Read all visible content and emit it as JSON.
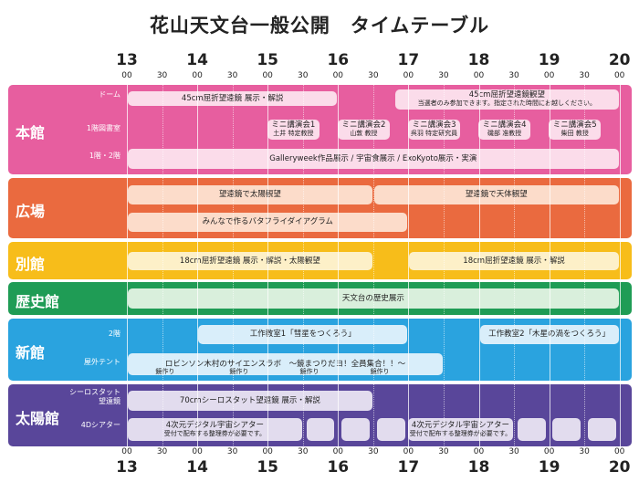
{
  "title": "花山天文台一般公開　タイムテーブル",
  "axis": {
    "hours": [
      "13",
      "14",
      "15",
      "16",
      "17",
      "18",
      "19",
      "20"
    ],
    "minutes": [
      "00",
      "30",
      "00",
      "30",
      "00",
      "30",
      "00",
      "30",
      "00",
      "30",
      "00",
      "30",
      "00",
      "30",
      "00"
    ]
  },
  "sections": [
    {
      "id": "honkan",
      "label": "本館",
      "color": "#e75e9f",
      "sublabels": [
        "ドーム",
        "1階図書室",
        "1階・2階"
      ]
    },
    {
      "id": "hiroba",
      "label": "広場",
      "color": "#ea6a3f",
      "sublabels": []
    },
    {
      "id": "bekkan",
      "label": "別館",
      "color": "#f7bd1a",
      "sublabels": []
    },
    {
      "id": "rekishi",
      "label": "歴史館",
      "color": "#1f9c55",
      "sublabels": []
    },
    {
      "id": "shinkan",
      "label": "新館",
      "color": "#2aa3df",
      "sublabels": [
        "2階",
        "屋外テント"
      ]
    },
    {
      "id": "taiyo",
      "label": "太陽館",
      "color": "#59469a",
      "sublabels": [
        "シーロスタット望遠鏡",
        "4Dシアター"
      ]
    }
  ],
  "events": {
    "dome1": {
      "lines": [
        "45cm屈折望遠鏡 展示・解説"
      ]
    },
    "dome2": {
      "lines": [
        "45cm屈折望遠鏡観望",
        "当選者のみ参加できます。指定された時間にお越しください。"
      ]
    },
    "lecture1": {
      "lines": [
        "ミニ講演会1",
        "土井 特定教授"
      ]
    },
    "lecture2": {
      "lines": [
        "ミニ講演会2",
        "山敦 教授"
      ]
    },
    "lecture3": {
      "lines": [
        "ミニ講演会3",
        "呉羽 特定研究員"
      ]
    },
    "lecture4": {
      "lines": [
        "ミニ講演会4",
        "磯部 准教授"
      ]
    },
    "lecture5": {
      "lines": [
        "ミニ講演会5",
        "柴田 教授"
      ]
    },
    "gallery": {
      "lines": [
        "Galleryweek作品展示 / 宇宙食展示 / ExoKyoto展示・実演"
      ]
    },
    "sun": {
      "lines": [
        "望遠鏡で太陽観望"
      ]
    },
    "stars": {
      "lines": [
        "望遠鏡で天体観望"
      ]
    },
    "butterfly": {
      "lines": [
        "みんなで作るバタフライダイアグラム"
      ]
    },
    "bekkan1": {
      "lines": [
        "18cm屈折望遠鏡 展示・解説・太陽観望"
      ]
    },
    "bekkan2": {
      "lines": [
        "18cm屈折望遠鏡 展示・解説"
      ]
    },
    "history": {
      "lines": [
        "天文台の歴史展示"
      ]
    },
    "workshop1": {
      "lines": [
        "工作教室1「彗星をつくろう」"
      ]
    },
    "workshop2": {
      "lines": [
        "工作教室2「木星の渦をつくろう」"
      ]
    },
    "tent": {
      "lines": [
        "ロビンソン木村のサイエンスラボ　～鏡まつりだヨ！全員集合！！～"
      ]
    },
    "craft": {
      "label": "鏡作り"
    },
    "coelostat": {
      "lines": [
        "70cmシーロスタット望遠鏡 展示・解説"
      ]
    },
    "theater1": {
      "lines": [
        "4次元デジタル宇宙シアター",
        "受付で配布する整理券が必要です。"
      ]
    },
    "theater2": {
      "lines": [
        "4次元デジタル宇宙シアター",
        "受付で配布する整理券が必要です。"
      ]
    }
  }
}
